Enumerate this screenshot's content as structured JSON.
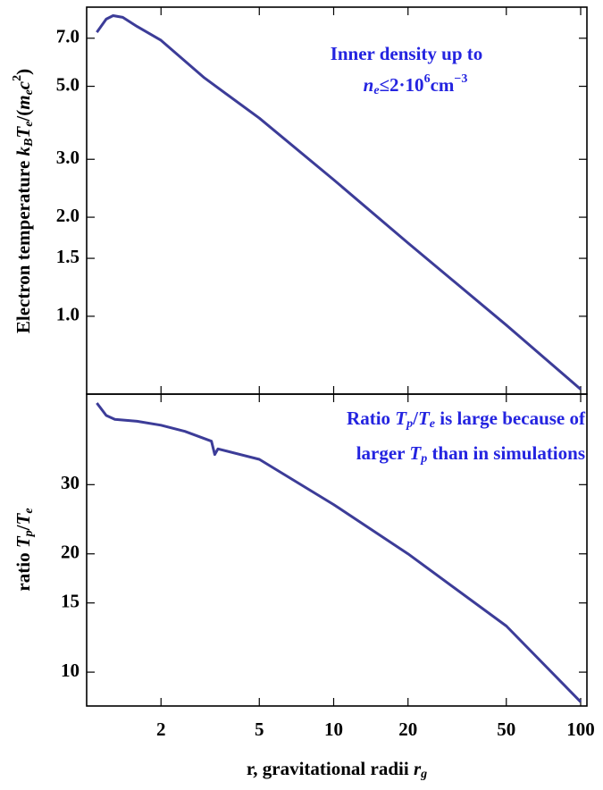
{
  "chart_data": [
    {
      "type": "line",
      "xlog": true,
      "ylog": true,
      "show_xtick_labels": false,
      "ylabel": [
        {
          "text": "Electron temperature  ",
          "style": "n"
        },
        {
          "text": "k",
          "style": "i"
        },
        {
          "text": "B",
          "style": "s"
        },
        {
          "text": "T",
          "style": "i"
        },
        {
          "text": "e",
          "style": "s"
        },
        {
          "text": "/(",
          "style": "n"
        },
        {
          "text": "m",
          "style": "i"
        },
        {
          "text": "e",
          "style": "s"
        },
        {
          "text": "c",
          "style": "i"
        },
        {
          "text": "2",
          "style": "S"
        },
        {
          "text": ")",
          "style": "n"
        }
      ],
      "annotations": [
        [
          {
            "text": "Inner density up to",
            "style": "n"
          }
        ],
        [
          {
            "text": "n",
            "style": "i"
          },
          {
            "text": "e",
            "style": "s"
          },
          {
            "text": "≤2·10",
            "style": "n"
          },
          {
            "text": "6",
            "style": "S"
          },
          {
            "text": "cm",
            "style": "n"
          },
          {
            "text": "−3",
            "style": "S"
          }
        ]
      ],
      "annotation_color": "#2424e0",
      "x": [
        1.1,
        1.2,
        1.28,
        1.4,
        1.6,
        2,
        3,
        5,
        10,
        20,
        50,
        100
      ],
      "values": [
        7.3,
        8.0,
        8.2,
        8.1,
        7.6,
        6.9,
        5.3,
        4.0,
        2.6,
        1.67,
        0.94,
        0.6
      ],
      "color": "#3c3c98",
      "xlim": [
        1,
        106
      ],
      "xticks": [
        2,
        5,
        10,
        20,
        50,
        100
      ],
      "ylim": [
        0.58,
        8.7
      ],
      "yticks": [
        {
          "value": 1,
          "label": "1.0"
        },
        {
          "value": 1.5,
          "label": "1.5"
        },
        {
          "value": 2,
          "label": "2.0"
        },
        {
          "value": 3,
          "label": "3.0"
        },
        {
          "value": 5,
          "label": "5.0"
        },
        {
          "value": 7,
          "label": "7.0"
        }
      ]
    },
    {
      "type": "line",
      "xlog": true,
      "ylog": true,
      "show_xtick_labels": true,
      "ylabel": [
        {
          "text": "ratio ",
          "style": "n"
        },
        {
          "text": "T",
          "style": "i"
        },
        {
          "text": "p",
          "style": "s"
        },
        {
          "text": "/",
          "style": "n"
        },
        {
          "text": "T",
          "style": "i"
        },
        {
          "text": "e",
          "style": "s"
        }
      ],
      "xlabel": [
        {
          "text": "r, gravitational radii ",
          "style": "n"
        },
        {
          "text": "r",
          "style": "i"
        },
        {
          "text": "g",
          "style": "s"
        }
      ],
      "annotations": [
        [
          {
            "text": "Ratio ",
            "style": "n"
          },
          {
            "text": "T",
            "style": "i"
          },
          {
            "text": "p",
            "style": "s"
          },
          {
            "text": "/",
            "style": "n"
          },
          {
            "text": "T",
            "style": "i"
          },
          {
            "text": "e",
            "style": "s"
          },
          {
            "text": " is large because of",
            "style": "n"
          }
        ],
        [
          {
            "text": "larger ",
            "style": "n"
          },
          {
            "text": "T",
            "style": "i"
          },
          {
            "text": "p",
            "style": "s"
          },
          {
            "text": " than in simulations",
            "style": "n"
          }
        ]
      ],
      "annotation_color": "#2424e0",
      "x": [
        1.1,
        1.2,
        1.3,
        1.6,
        2,
        2.5,
        3.2,
        3.3,
        3.4,
        5,
        10,
        20,
        50,
        100
      ],
      "values": [
        48.4,
        45,
        44,
        43.5,
        42.5,
        41,
        38.7,
        35.8,
        37,
        34.8,
        26.7,
        20,
        13.1,
        8.4
      ],
      "color": "#3c3c98",
      "xlim": [
        1,
        106
      ],
      "xticks": [
        2,
        5,
        10,
        20,
        50,
        100
      ],
      "ylim": [
        8.2,
        51
      ],
      "yticks": [
        10,
        15,
        20,
        30
      ]
    }
  ]
}
